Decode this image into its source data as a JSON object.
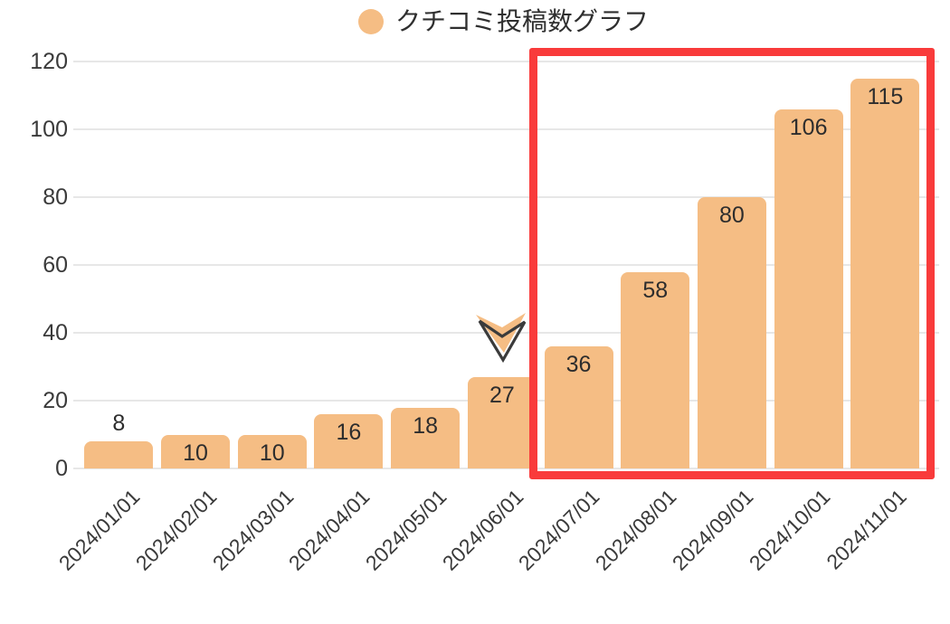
{
  "legend": {
    "label": "クチコミ投稿数グラフ",
    "marker_color": "#F5BD84"
  },
  "chart_data": {
    "type": "bar",
    "title": "クチコミ投稿数グラフ",
    "categories": [
      "2024/01/01",
      "2024/02/01",
      "2024/03/01",
      "2024/04/01",
      "2024/05/01",
      "2024/06/01",
      "2024/07/01",
      "2024/08/01",
      "2024/09/01",
      "2024/10/01",
      "2024/11/01"
    ],
    "values": [
      8,
      10,
      10,
      16,
      18,
      27,
      36,
      58,
      80,
      106,
      115
    ],
    "xlabel": "",
    "ylabel": "",
    "ylim": [
      0,
      120
    ],
    "yticks": [
      0,
      20,
      40,
      60,
      80,
      100,
      120
    ],
    "grid": true,
    "legend_position": "top-center",
    "bar_color": "#F5BD84",
    "bar_label_color": "#2d2d2d",
    "axis_label_color": "#3a3a3a",
    "gridline_color": "#e7e7e7",
    "highlight_rect": {
      "from_category": "2024/07/01",
      "to_category": "2024/11/01",
      "color": "#F93B3B"
    },
    "annotation_chevron": {
      "category": "2024/06/01",
      "direction": "down",
      "fill_color": "#F5BD84",
      "outline_color": "#3B3B3B"
    }
  }
}
